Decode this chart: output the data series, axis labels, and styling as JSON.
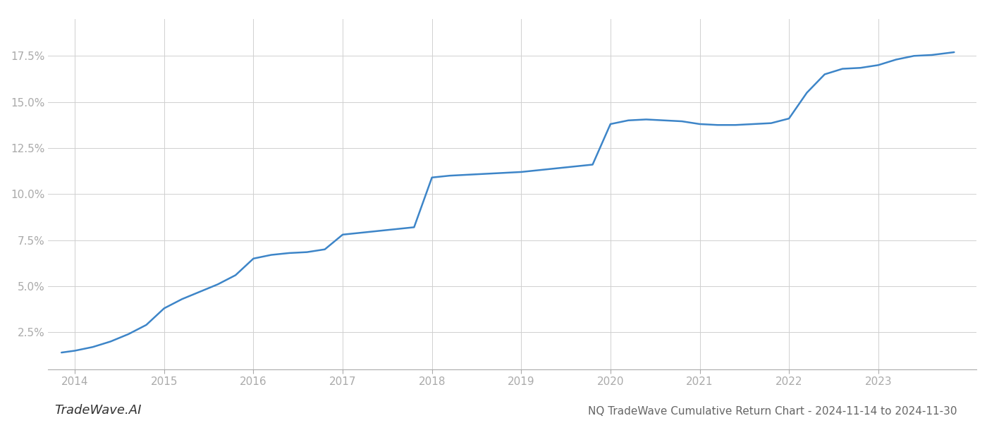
{
  "x_values": [
    2013.85,
    2014.0,
    2014.2,
    2014.4,
    2014.6,
    2014.8,
    2015.0,
    2015.2,
    2015.4,
    2015.6,
    2015.8,
    2016.0,
    2016.2,
    2016.4,
    2016.6,
    2016.8,
    2017.0,
    2017.2,
    2017.4,
    2017.6,
    2017.8,
    2018.0,
    2018.2,
    2018.4,
    2018.6,
    2018.8,
    2019.0,
    2019.2,
    2019.4,
    2019.6,
    2019.8,
    2020.0,
    2020.2,
    2020.4,
    2020.6,
    2020.8,
    2021.0,
    2021.2,
    2021.4,
    2021.6,
    2021.8,
    2022.0,
    2022.2,
    2022.4,
    2022.6,
    2022.8,
    2023.0,
    2023.2,
    2023.4,
    2023.6,
    2023.85
  ],
  "y_values": [
    1.4,
    1.5,
    1.7,
    2.0,
    2.4,
    2.9,
    3.8,
    4.3,
    4.7,
    5.1,
    5.6,
    6.5,
    6.7,
    6.8,
    6.85,
    7.0,
    7.8,
    7.9,
    8.0,
    8.1,
    8.2,
    10.9,
    11.0,
    11.05,
    11.1,
    11.15,
    11.2,
    11.3,
    11.4,
    11.5,
    11.6,
    13.8,
    14.0,
    14.05,
    14.0,
    13.95,
    13.8,
    13.75,
    13.75,
    13.8,
    13.85,
    14.1,
    15.5,
    16.5,
    16.8,
    16.85,
    17.0,
    17.3,
    17.5,
    17.55,
    17.7
  ],
  "line_color": "#3d85c8",
  "line_width": 1.8,
  "background_color": "#ffffff",
  "grid_color": "#d0d0d0",
  "title": "NQ TradeWave Cumulative Return Chart - 2024-11-14 to 2024-11-30",
  "watermark": "TradeWave.AI",
  "yticks": [
    2.5,
    5.0,
    7.5,
    10.0,
    12.5,
    15.0,
    17.5
  ],
  "xticks": [
    2014,
    2015,
    2016,
    2017,
    2018,
    2019,
    2020,
    2021,
    2022,
    2023
  ],
  "xlim": [
    2013.7,
    2024.1
  ],
  "ylim": [
    0.5,
    19.5
  ],
  "tick_label_color": "#555555",
  "spine_color": "#aaaaaa",
  "title_fontsize": 11,
  "watermark_fontsize": 13,
  "axis_tick_fontsize": 11
}
